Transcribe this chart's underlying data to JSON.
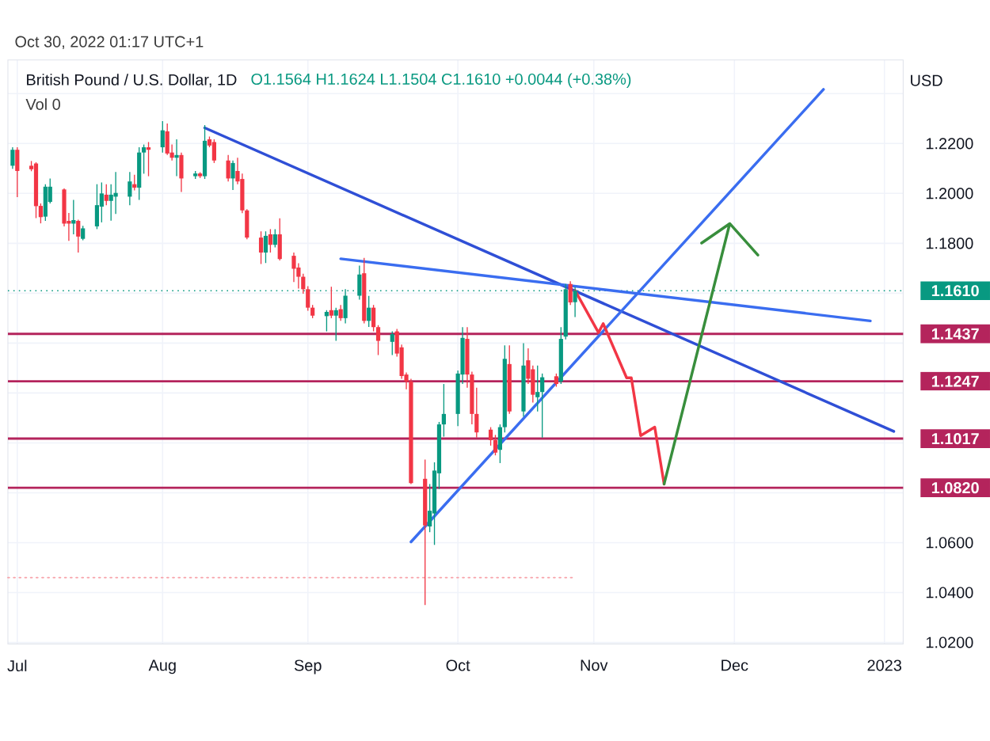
{
  "chart_data": {
    "type": "candlestick",
    "title": "British Pound / U.S. Dollar, 1D",
    "subtitle": "O1.1564  H1.1624  L1.1504  C1.1610  +0.0044 (+0.38%)",
    "ylabel": "USD",
    "annotations": [
      "Vol 0",
      "Oct 30, 2022 01:17 UTC+1"
    ],
    "xlim": [
      "2022-06-29",
      "2023-01-06"
    ],
    "ylim": [
      1.0194,
      1.2535
    ],
    "xticks": [
      {
        "value": "2022-07-01",
        "label": "Jul"
      },
      {
        "value": "2022-08-01",
        "label": "Aug"
      },
      {
        "value": "2022-09-01",
        "label": "Sep"
      },
      {
        "value": "2022-10-03",
        "label": "Oct"
      },
      {
        "value": "2022-11-01",
        "label": "Nov"
      },
      {
        "value": "2022-12-01",
        "label": "Dec"
      },
      {
        "value": "2023-01-02",
        "label": "2023"
      }
    ],
    "yticks": [
      {
        "value": 1.02,
        "label": "1.0200"
      },
      {
        "value": 1.04,
        "label": "1.0400"
      },
      {
        "value": 1.06,
        "label": "1.0600"
      },
      {
        "value": 1.08,
        "label": null
      },
      {
        "value": 1.1,
        "label": null
      },
      {
        "value": 1.12,
        "label": null
      },
      {
        "value": 1.14,
        "label": null
      },
      {
        "value": 1.16,
        "label": null
      },
      {
        "value": 1.18,
        "label": "1.1800"
      },
      {
        "value": 1.2,
        "label": "1.2000"
      },
      {
        "value": 1.22,
        "label": "1.2200"
      },
      {
        "value": 1.24,
        "label": null
      }
    ],
    "grid": true,
    "x": [
      "2022-06-30",
      "2022-07-01",
      "2022-07-04",
      "2022-07-05",
      "2022-07-06",
      "2022-07-07",
      "2022-07-08",
      "2022-07-11",
      "2022-07-12",
      "2022-07-13",
      "2022-07-14",
      "2022-07-15",
      "2022-07-18",
      "2022-07-19",
      "2022-07-20",
      "2022-07-21",
      "2022-07-22",
      "2022-07-25",
      "2022-07-26",
      "2022-07-27",
      "2022-07-28",
      "2022-07-29",
      "2022-08-01",
      "2022-08-02",
      "2022-08-03",
      "2022-08-04",
      "2022-08-05",
      "2022-08-08",
      "2022-08-09",
      "2022-08-10",
      "2022-08-11",
      "2022-08-12",
      "2022-08-15",
      "2022-08-16",
      "2022-08-17",
      "2022-08-18",
      "2022-08-19",
      "2022-08-22",
      "2022-08-23",
      "2022-08-24",
      "2022-08-25",
      "2022-08-26",
      "2022-08-29",
      "2022-08-30",
      "2022-08-31",
      "2022-09-01",
      "2022-09-02",
      "2022-09-05",
      "2022-09-06",
      "2022-09-07",
      "2022-09-08",
      "2022-09-09",
      "2022-09-12",
      "2022-09-13",
      "2022-09-14",
      "2022-09-15",
      "2022-09-16",
      "2022-09-19",
      "2022-09-20",
      "2022-09-21",
      "2022-09-22",
      "2022-09-23",
      "2022-09-26",
      "2022-09-27",
      "2022-09-28",
      "2022-09-29",
      "2022-09-30",
      "2022-10-03",
      "2022-10-04",
      "2022-10-05",
      "2022-10-06",
      "2022-10-07",
      "2022-10-10",
      "2022-10-11",
      "2022-10-12",
      "2022-10-13",
      "2022-10-14",
      "2022-10-17",
      "2022-10-18",
      "2022-10-19",
      "2022-10-20",
      "2022-10-21",
      "2022-10-24",
      "2022-10-25",
      "2022-10-26",
      "2022-10-27",
      "2022-10-28"
    ],
    "ohlc": [
      [
        1.2111,
        1.2185,
        1.2099,
        1.2175
      ],
      [
        1.2175,
        1.2185,
        1.1985,
        1.209
      ],
      [
        1.2111,
        1.213,
        1.2089,
        1.2097
      ],
      [
        1.212,
        1.2125,
        1.1901,
        1.1949
      ],
      [
        1.195,
        1.196,
        1.188,
        1.1905
      ],
      [
        1.1907,
        1.2037,
        1.189,
        1.2027
      ],
      [
        1.1966,
        1.206,
        1.196,
        1.2027
      ],
      [
        1.2016,
        1.202,
        1.1868,
        1.1879
      ],
      [
        1.189,
        1.1922,
        1.181,
        1.1879
      ],
      [
        1.1879,
        1.1974,
        1.1836,
        1.1893
      ],
      [
        1.189,
        1.1895,
        1.1763,
        1.1827
      ],
      [
        1.1818,
        1.187,
        1.1812,
        1.186
      ],
      [
        1.1868,
        1.2037,
        1.1857,
        1.1953
      ],
      [
        1.1947,
        1.2044,
        1.1884,
        1.2
      ],
      [
        1.1995,
        1.2037,
        1.1953,
        1.197
      ],
      [
        1.197,
        1.2037,
        1.1891,
        1.1995
      ],
      [
        1.1987,
        1.2086,
        1.1918,
        1.2002
      ],
      [
        1.1987,
        1.2086,
        1.1953,
        1.2048
      ],
      [
        1.2037,
        1.2075,
        1.2012,
        1.2023
      ],
      [
        1.2023,
        1.2185,
        1.1974,
        1.2164
      ],
      [
        1.2164,
        1.2196,
        1.2079,
        1.2185
      ],
      [
        1.2185,
        1.2206,
        1.2069,
        1.2175
      ],
      [
        1.2185,
        1.229,
        1.2164,
        1.2253
      ],
      [
        1.2249,
        1.228,
        1.2154,
        1.216
      ],
      [
        1.2164,
        1.2196,
        1.2132,
        1.2143
      ],
      [
        1.2143,
        1.2217,
        1.2069,
        1.2154
      ],
      [
        1.2154,
        1.2164,
        1.2006,
        1.206
      ],
      [
        1.2069,
        1.209,
        1.2058,
        1.208
      ],
      [
        1.208,
        1.2085,
        1.2062,
        1.2069
      ],
      [
        1.2069,
        1.2274,
        1.2058,
        1.2211
      ],
      [
        1.2217,
        1.2228,
        1.2185,
        1.2192
      ],
      [
        1.2206,
        1.2217,
        1.2122,
        1.2132
      ],
      [
        1.2132,
        1.2154,
        1.2048,
        1.206
      ],
      [
        1.206,
        1.2132,
        1.2014,
        1.2122
      ],
      [
        1.209,
        1.2143,
        1.2037,
        1.2048
      ],
      [
        1.2058,
        1.208,
        1.1921,
        1.1932
      ],
      [
        1.1932,
        1.1937,
        1.1816,
        1.1823
      ],
      [
        1.1823,
        1.1848,
        1.1717,
        1.1763
      ],
      [
        1.1763,
        1.1848,
        1.1721,
        1.183
      ],
      [
        1.1836,
        1.1857,
        1.1763,
        1.1794
      ],
      [
        1.1794,
        1.1857,
        1.1784,
        1.1836
      ],
      [
        1.1836,
        1.19,
        1.1731,
        1.1737
      ],
      [
        1.175,
        1.1763,
        1.1645,
        1.1698
      ],
      [
        1.1703,
        1.172,
        1.1619,
        1.1666
      ],
      [
        1.1666,
        1.1678,
        1.1598,
        1.1616
      ],
      [
        1.1616,
        1.1628,
        1.153,
        1.1542
      ],
      [
        1.1542,
        1.1553,
        1.15,
        1.151
      ],
      [
        1.1508,
        1.1532,
        1.1447,
        1.1525
      ],
      [
        1.1532,
        1.1626,
        1.15,
        1.151
      ],
      [
        1.151,
        1.1542,
        1.1409,
        1.1532
      ],
      [
        1.1536,
        1.1553,
        1.1489,
        1.15
      ],
      [
        1.15,
        1.1616,
        1.1479,
        1.159
      ],
      [
        1.159,
        1.1711,
        1.1574,
        1.1675
      ],
      [
        1.168,
        1.1742,
        1.1479,
        1.1489
      ],
      [
        1.1489,
        1.1589,
        1.1465,
        1.1542
      ],
      [
        1.1542,
        1.1553,
        1.1447,
        1.1464
      ],
      [
        1.1464,
        1.1472,
        1.1352,
        1.1409
      ],
      [
        1.1405,
        1.1447,
        1.1352,
        1.1436
      ],
      [
        1.1447,
        1.1457,
        1.1346,
        1.1358
      ],
      [
        1.1383,
        1.1394,
        1.1257,
        1.1268
      ],
      [
        1.1274,
        1.1282,
        1.1215,
        1.1246
      ],
      [
        1.1246,
        1.1257,
        1.0835,
        1.0839
      ],
      [
        1.0856,
        1.0933,
        1.035,
        1.0669
      ],
      [
        1.0665,
        1.0835,
        1.0642,
        1.0728
      ],
      [
        1.0717,
        1.0922,
        1.0591,
        1.0889
      ],
      [
        1.0878,
        1.1084,
        1.0815,
        1.1074
      ],
      [
        1.1074,
        1.1236,
        1.1025,
        1.1116
      ],
      [
        1.1116,
        1.129,
        1.1067,
        1.1278
      ],
      [
        1.1274,
        1.1464,
        1.1236,
        1.1421
      ],
      [
        1.1417,
        1.1464,
        1.1221,
        1.1274
      ],
      [
        1.1274,
        1.1285,
        1.1074,
        1.1116
      ],
      [
        1.1116,
        1.1221,
        1.1021,
        1.1042
      ],
      [
        1.1053,
        1.1063,
        1.0989,
        1.1011
      ],
      [
        1.1011,
        1.1032,
        1.095,
        1.0961
      ],
      [
        1.0972,
        1.1074,
        1.0919,
        1.1063
      ],
      [
        1.1063,
        1.1391,
        1.1042,
        1.1337
      ],
      [
        1.1316,
        1.1391,
        1.1116,
        1.1126
      ],
      [
        1.1126,
        1.14,
        1.1105,
        1.131
      ],
      [
        1.1331,
        1.1379,
        1.1236,
        1.1257
      ],
      [
        1.1295,
        1.131,
        1.1162,
        1.1193
      ],
      [
        1.1183,
        1.131,
        1.1126,
        1.1204
      ],
      [
        1.1204,
        1.1278,
        1.1021,
        1.1263
      ],
      [
        1.1267,
        1.1278,
        1.1225,
        1.1236
      ],
      [
        1.1246,
        1.1464,
        1.1236,
        1.1417
      ],
      [
        1.1426,
        1.1637,
        1.1415,
        1.1616
      ],
      [
        1.1637,
        1.1648,
        1.1553,
        1.1563
      ],
      [
        1.1564,
        1.1624,
        1.1504,
        1.161
      ]
    ],
    "series": [
      {
        "type": "line",
        "color": "#f7a1a8",
        "line_style": "dotted",
        "x": [
          "2022-06-29",
          "2022-10-28"
        ],
        "values": [
          1.046,
          1.046
        ]
      },
      {
        "type": "line",
        "color": "#2f4fd6",
        "x": [
          "2022-08-10",
          "2023-01-04"
        ],
        "values": [
          1.2263,
          1.1046
        ]
      },
      {
        "type": "line",
        "color": "#3a6df0",
        "x": [
          "2022-09-08",
          "2022-12-30"
        ],
        "values": [
          1.1738,
          1.1489
        ]
      },
      {
        "type": "line",
        "color": "#3a6df0",
        "x": [
          "2022-09-23",
          "2022-12-20"
        ],
        "values": [
          1.0603,
          1.2417
        ]
      },
      {
        "type": "line",
        "color": "#f23645",
        "x": [
          "2022-10-28",
          "2022-11-02",
          "2022-11-03",
          "2022-11-08",
          "2022-11-09",
          "2022-11-11",
          "2022-11-14",
          "2022-11-16"
        ],
        "values": [
          1.1611,
          1.1442,
          1.1478,
          1.1261,
          1.1261,
          1.1029,
          1.1063,
          1.0835
        ]
      },
      {
        "type": "line",
        "color": "#388e3c",
        "x": [
          "2022-11-16",
          "2022-11-30",
          "2022-11-24",
          "2022-11-30",
          "2022-12-06"
        ],
        "values": [
          1.0835,
          1.1879,
          1.1801,
          1.1879,
          1.1753
        ]
      }
    ],
    "ref_lines": [
      {
        "axis": "y",
        "value": 1.161,
        "label": "1.1610",
        "color": "#089981",
        "line_style": "dotted"
      },
      {
        "axis": "y",
        "value": 1.1437,
        "label": "1.1437",
        "color": "#b4245c"
      },
      {
        "axis": "y",
        "value": 1.1247,
        "label": "1.1247",
        "color": "#b4245c"
      },
      {
        "axis": "y",
        "value": 1.1017,
        "label": "1.1017",
        "color": "#b4245c"
      },
      {
        "axis": "y",
        "value": 1.082,
        "label": "1.0820",
        "color": "#b4245c"
      }
    ]
  }
}
